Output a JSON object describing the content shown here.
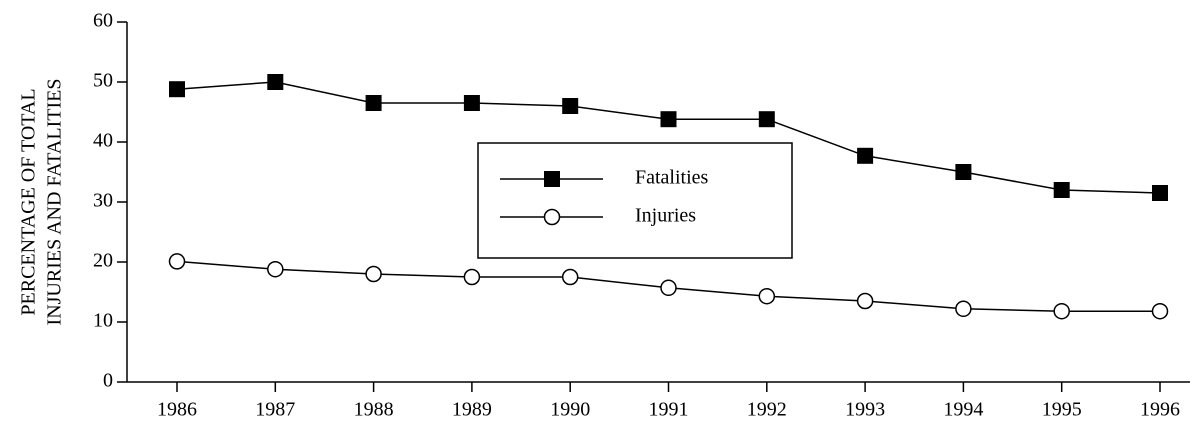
{
  "chart_data": {
    "type": "line",
    "y_label": [
      "PERCENTAGE OF TOTAL",
      "INJURIES AND FATALITIES"
    ],
    "categories": [
      "1986",
      "1987",
      "1988",
      "1989",
      "1990",
      "1991",
      "1992",
      "1993",
      "1994",
      "1995",
      "1996"
    ],
    "series": [
      {
        "name": "Fatalities",
        "color": "#000000",
        "marker": "square",
        "values": [
          48.8,
          50.0,
          46.5,
          46.5,
          46.0,
          43.8,
          43.8,
          37.7,
          35.0,
          32.0,
          31.5
        ]
      },
      {
        "name": "Injuries",
        "color": "#000000",
        "marker": "circle",
        "values": [
          20.1,
          18.8,
          18.0,
          17.5,
          17.5,
          15.7,
          14.3,
          13.5,
          12.2,
          11.8,
          11.8
        ]
      }
    ],
    "ylim": [
      0,
      60
    ],
    "yticks": [
      0,
      10,
      20,
      30,
      40,
      50,
      60
    ],
    "grid": false
  }
}
